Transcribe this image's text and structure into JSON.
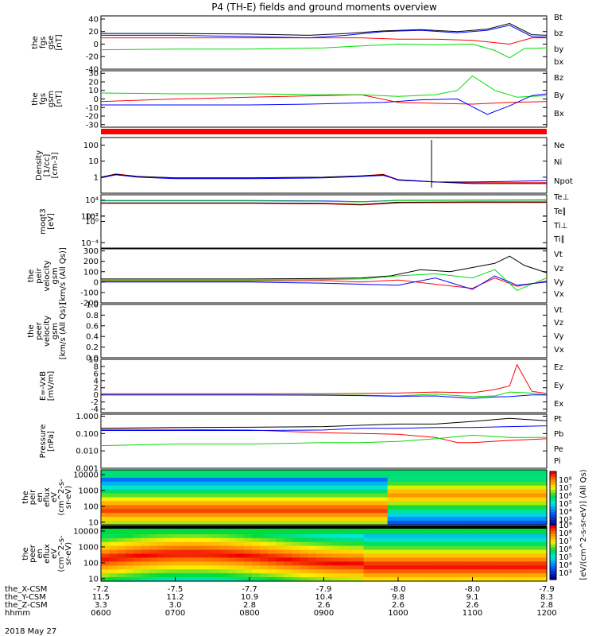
{
  "title": "P4 (TH-E) fields and ground moments overview",
  "date": "2018 May 27",
  "colors": {
    "black": "#000000",
    "red": "#ff0000",
    "green": "#00dd00",
    "blue": "#0000ff"
  },
  "chart_data": {
    "type": "line",
    "time_range_hours": [
      6,
      12
    ],
    "time_ticks": [
      "0600",
      "0700",
      "0800",
      "0900",
      "1000",
      "1100",
      "1200"
    ],
    "orbit_rows": [
      {
        "label": "the_X-CSM",
        "values": [
          "-7.2",
          "-7.5",
          "-7.7",
          "-7.9",
          "-8.0",
          "-8.0",
          "-7.9"
        ]
      },
      {
        "label": "the_Y-CSM",
        "values": [
          "11.5",
          "11.2",
          "10.9",
          "10.4",
          "9.8",
          "9.1",
          "8.3"
        ]
      },
      {
        "label": "the_Z-CSM",
        "values": [
          "3.3",
          "3.0",
          "2.8",
          "2.6",
          "2.6",
          "2.6",
          "2.8"
        ]
      },
      {
        "label": "hhmm",
        "values": [
          "0600",
          "0700",
          "0800",
          "0900",
          "1000",
          "1100",
          "1200"
        ]
      }
    ],
    "panels": [
      {
        "id": "fgs-gse",
        "ylabel": [
          "the",
          "fgs",
          "gse",
          "[nT]"
        ],
        "scale": "linear",
        "ylim": [
          -40,
          45
        ],
        "ticks": [
          "40",
          "20",
          "0",
          "-20",
          "-40"
        ],
        "series": [
          {
            "name": "Bt",
            "color": "#000000",
            "t": [
              6,
              7,
              8,
              8.8,
              9.3,
              9.8,
              10.3,
              10.8,
              11.2,
              11.5,
              11.8,
              12
            ],
            "v": [
              17,
              17,
              16,
              14,
              17,
              21,
              23,
              20,
              24,
              33,
              15,
              14
            ]
          },
          {
            "name": "bz",
            "color": "#ff0000",
            "t": [
              6,
              7,
              8,
              9,
              9.5,
              10,
              10.5,
              11,
              11.5,
              11.8,
              12
            ],
            "v": [
              10,
              10,
              10,
              10,
              10,
              8,
              8,
              6,
              0,
              10,
              10
            ]
          },
          {
            "name": "by",
            "color": "#00dd00",
            "t": [
              6,
              7,
              8,
              9,
              9.5,
              10,
              10.5,
              11,
              11.3,
              11.5,
              11.7,
              12
            ],
            "v": [
              -9,
              -8,
              -8,
              -6,
              -3,
              0,
              -1,
              0,
              -10,
              -22,
              -7,
              -6
            ]
          },
          {
            "name": "bx",
            "color": "#0000ff",
            "t": [
              6,
              7,
              8,
              8.8,
              9.3,
              9.8,
              10.3,
              10.8,
              11.2,
              11.5,
              11.8,
              12
            ],
            "v": [
              14,
              14,
              12,
              10,
              14,
              20,
              22,
              18,
              22,
              30,
              12,
              11
            ]
          }
        ]
      },
      {
        "id": "fgs-gsm",
        "ylabel": [
          "the",
          "fgs",
          "gsm",
          "[nT]"
        ],
        "scale": "linear",
        "ylim": [
          -33,
          33
        ],
        "ticks": [
          "30",
          "20",
          "10",
          "0",
          "-10",
          "-20",
          "-30"
        ],
        "series": [
          {
            "name": "Bz",
            "color": "#ff0000",
            "t": [
              6,
              7,
              8,
              9,
              9.5,
              10,
              10.5,
              11,
              11.5,
              12
            ],
            "v": [
              -3,
              0,
              2,
              4,
              5,
              -4,
              -5,
              -6,
              -4,
              -3
            ]
          },
          {
            "name": "By",
            "color": "#00dd00",
            "t": [
              6,
              7,
              8,
              9,
              9.5,
              10,
              10.5,
              10.8,
              11,
              11.3,
              11.6,
              12
            ],
            "v": [
              7,
              6,
              6,
              5,
              5,
              3,
              5,
              10,
              27,
              10,
              2,
              4
            ]
          },
          {
            "name": "Bx",
            "color": "#0000ff",
            "t": [
              6,
              7,
              8,
              8.8,
              9.3,
              9.8,
              10.3,
              10.8,
              11.2,
              11.5,
              11.8,
              12
            ],
            "v": [
              -7,
              -7,
              -7,
              -6,
              -5,
              -4,
              -1,
              0,
              -18,
              -8,
              4,
              6
            ]
          }
        ]
      },
      {
        "id": "density",
        "ylabel": [
          "Density",
          "[1/cc]",
          "[cm-3]"
        ],
        "scale": "log",
        "ylim": [
          0.1,
          300
        ],
        "ticks": [
          "100",
          "10",
          "1"
        ],
        "series": [
          {
            "name": "Ne",
            "color": "#ff0000",
            "t": [
              6,
              6.2,
              6.5,
              7,
              8,
              9,
              9.5,
              9.8,
              10,
              10.5,
              11,
              11.5,
              12
            ],
            "v": [
              1.0,
              1.6,
              1.1,
              0.9,
              0.9,
              1.0,
              1.2,
              1.5,
              0.7,
              0.5,
              0.45,
              0.45,
              0.45
            ]
          },
          {
            "name": "Ni",
            "color": "#000000",
            "t": [
              6,
              6.2,
              6.5,
              7,
              8,
              9,
              9.5,
              9.8,
              10,
              10.5,
              11,
              11.5,
              12
            ],
            "v": [
              1.0,
              1.5,
              1.1,
              0.9,
              0.9,
              1.0,
              1.2,
              1.4,
              0.65,
              0.5,
              0.4,
              0.4,
              0.4
            ]
          },
          {
            "name": "Npot",
            "color": "#0000ff",
            "t": [
              6,
              6.2,
              6.5,
              7,
              8,
              9,
              9.5,
              9.8,
              10,
              10.5,
              11,
              11.5,
              12
            ],
            "v": [
              0.9,
              1.4,
              1.0,
              0.8,
              0.8,
              0.9,
              1.1,
              1.3,
              0.7,
              0.5,
              0.5,
              0.55,
              0.6
            ]
          }
        ]
      },
      {
        "id": "temperature",
        "ylabel": [
          "moqt3",
          "[eV]"
        ],
        "scale": "log",
        "ylim": [
          1e-05,
          100000
        ],
        "ticks": [
          "10⁴",
          "10²",
          "10⁰",
          "10⁻²",
          "10⁻⁴"
        ],
        "series": [
          {
            "name": "Te⊥",
            "color": "#ff0000",
            "t": [
              6,
              7,
              8,
              9,
              9.5,
              10,
              11,
              12
            ],
            "v": [
              2500,
              2500,
              2500,
              2000,
              1200,
              3000,
              3500,
              3500
            ]
          },
          {
            "name": "Te∥",
            "color": "#000000",
            "t": [
              6,
              7,
              8,
              9,
              9.5,
              10,
              11,
              12
            ],
            "v": [
              3000,
              3000,
              3000,
              2500,
              1500,
              4000,
              4500,
              4500
            ]
          },
          {
            "name": "Ti⊥",
            "color": "#0000ff",
            "t": [
              6,
              7,
              8,
              9,
              9.5,
              10,
              11,
              12
            ],
            "v": [
              8000,
              8000,
              8000,
              7000,
              5000,
              9000,
              10000,
              11000
            ]
          },
          {
            "name": "Ti∥",
            "color": "#00dd00",
            "t": [
              6,
              7,
              8,
              9,
              9.5,
              10,
              11,
              12
            ],
            "v": [
              7000,
              7000,
              7000,
              6000,
              4500,
              8000,
              9000,
              10000
            ]
          }
        ]
      },
      {
        "id": "peir-velocity",
        "ylabel": [
          "the",
          "peir",
          "velocity",
          "gsm",
          "[km/s (All Qs)]"
        ],
        "scale": "linear",
        "ylim": [
          -200,
          320
        ],
        "ticks": [
          "300",
          "200",
          "100",
          "0",
          "-100",
          "-200"
        ],
        "series": [
          {
            "name": "Vt",
            "color": "#000000",
            "t": [
              6,
              7,
              8,
              9,
              9.5,
              9.9,
              10.3,
              10.7,
              11,
              11.3,
              11.5,
              11.7,
              12
            ],
            "v": [
              30,
              30,
              30,
              35,
              40,
              60,
              120,
              100,
              140,
              180,
              250,
              160,
              90
            ]
          },
          {
            "name": "Vz",
            "color": "#ff0000",
            "t": [
              6,
              7,
              8,
              9,
              9.5,
              10,
              10.5,
              11,
              11.3,
              11.6,
              12
            ],
            "v": [
              10,
              10,
              10,
              15,
              0,
              20,
              -20,
              -60,
              40,
              -40,
              10
            ]
          },
          {
            "name": "Vy",
            "color": "#00dd00",
            "t": [
              6,
              7,
              8,
              9,
              9.5,
              10,
              10.5,
              11,
              11.3,
              11.6,
              12
            ],
            "v": [
              20,
              20,
              20,
              25,
              30,
              60,
              80,
              40,
              120,
              -80,
              40
            ]
          },
          {
            "name": "Vx",
            "color": "#0000ff",
            "t": [
              6,
              7,
              8,
              9,
              9.5,
              10,
              10.5,
              11,
              11.3,
              11.6,
              12
            ],
            "v": [
              0,
              0,
              0,
              -10,
              -20,
              -30,
              40,
              -70,
              60,
              -30,
              0
            ]
          }
        ]
      },
      {
        "id": "peer-velocity",
        "ylabel": [
          "the",
          "peer",
          "velocity",
          "gsm",
          "[km/s (All Qs)]"
        ],
        "scale": "linear",
        "ylim": [
          0,
          1
        ],
        "ticks": [
          "1.0",
          "0.8",
          "0.6",
          "0.4",
          "0.2",
          "0.0"
        ],
        "series": [
          {
            "name": "Vt",
            "color": "#000000",
            "t": [],
            "v": []
          },
          {
            "name": "Vz",
            "color": "#ff0000",
            "t": [],
            "v": []
          },
          {
            "name": "Vy",
            "color": "#00dd00",
            "t": [],
            "v": []
          },
          {
            "name": "Vx",
            "color": "#0000ff",
            "t": [],
            "v": []
          }
        ]
      },
      {
        "id": "e-field",
        "ylabel": [
          "E=-VxB",
          "[mV/m]"
        ],
        "scale": "linear",
        "ylim": [
          -5,
          10
        ],
        "ticks": [
          "10",
          "8",
          "6",
          "4",
          "2",
          "0",
          "-2",
          "-4"
        ],
        "series": [
          {
            "name": "Ez",
            "color": "#ff0000",
            "t": [
              6,
              7,
              8,
              9,
              9.5,
              10,
              10.5,
              11,
              11.3,
              11.5,
              11.6,
              11.8,
              12
            ],
            "v": [
              0.3,
              0.3,
              0.3,
              0.3,
              0.4,
              0.5,
              0.8,
              0.6,
              1.5,
              2.5,
              8.5,
              1.0,
              0.4
            ]
          },
          {
            "name": "Ey",
            "color": "#00dd00",
            "t": [
              6,
              7,
              8,
              9,
              9.5,
              10,
              10.5,
              11,
              11.3,
              11.5,
              11.8,
              12
            ],
            "v": [
              0,
              0,
              0,
              0,
              -0.1,
              -0.3,
              0.2,
              -0.5,
              -0.3,
              0.8,
              0.5,
              0
            ]
          },
          {
            "name": "Ex",
            "color": "#0000ff",
            "t": [
              6,
              7,
              8,
              9,
              9.5,
              10,
              10.5,
              11,
              11.3,
              11.5,
              11.8,
              12
            ],
            "v": [
              0,
              0,
              0,
              -0.1,
              -0.2,
              -0.4,
              -0.3,
              -1.0,
              -0.6,
              -0.5,
              0,
              0
            ]
          }
        ]
      },
      {
        "id": "pressure",
        "ylabel": [
          "Pressure",
          "[nPa]"
        ],
        "scale": "log",
        "ylim": [
          0.001,
          1.3
        ],
        "ticks": [
          "1.000",
          "0.100",
          "0.010",
          "0.001"
        ],
        "series": [
          {
            "name": "Pt",
            "color": "#000000",
            "t": [
              6,
              7,
              8,
              9,
              9.5,
              10,
              10.5,
              11,
              11.5,
              12
            ],
            "v": [
              0.2,
              0.22,
              0.23,
              0.25,
              0.3,
              0.35,
              0.35,
              0.5,
              0.75,
              0.55
            ]
          },
          {
            "name": "Pb",
            "color": "#ff0000",
            "t": [
              6,
              7,
              8,
              9,
              9.5,
              10,
              10.5,
              10.8,
              11,
              11.5,
              12
            ],
            "v": [
              0.17,
              0.17,
              0.16,
              0.11,
              0.1,
              0.09,
              0.06,
              0.03,
              0.03,
              0.04,
              0.05
            ]
          },
          {
            "name": "Pe",
            "color": "#00dd00",
            "t": [
              6,
              7,
              8,
              9,
              9.5,
              10,
              10.5,
              11,
              11.5,
              12
            ],
            "v": [
              0.02,
              0.025,
              0.025,
              0.03,
              0.03,
              0.035,
              0.05,
              0.08,
              0.06,
              0.06
            ]
          },
          {
            "name": "Pi",
            "color": "#0000ff",
            "t": [
              6,
              7,
              8,
              9,
              9.5,
              10,
              10.5,
              11,
              11.5,
              12
            ],
            "v": [
              0.15,
              0.15,
              0.15,
              0.16,
              0.2,
              0.2,
              0.22,
              0.22,
              0.25,
              0.28
            ]
          }
        ]
      }
    ],
    "spectrograms": [
      {
        "id": "peir-en-eflux",
        "ylabel": [
          "the",
          "peir",
          "en",
          "eflux",
          "eV",
          "(cm^2-s-",
          "sr-eV)"
        ],
        "scale": "log",
        "ylim": [
          7,
          20000
        ],
        "ticks": [
          "10000",
          "1000",
          "100",
          "10"
        ]
      },
      {
        "id": "peer-en-eflux",
        "ylabel": [
          "the",
          "peer",
          "en",
          "eflux",
          "eV",
          "(cm^2-s-",
          "sr-eV)"
        ],
        "scale": "log",
        "ylim": [
          7,
          20000
        ],
        "ticks": [
          "10000",
          "1000",
          "100",
          "10"
        ]
      }
    ],
    "colorbar": {
      "label": "[eV/(cm^2-s-sr-eV)] (All Qs)",
      "ticks_upper": [
        "10⁸",
        "10⁷",
        "10⁶",
        "10⁵",
        "10⁴",
        "10³"
      ],
      "ticks_lower": [
        "10⁹",
        "10⁸",
        "10⁷",
        "10⁶",
        "10⁵",
        "10⁴",
        "10³"
      ]
    },
    "mode_bar_color": "#ff0000"
  }
}
